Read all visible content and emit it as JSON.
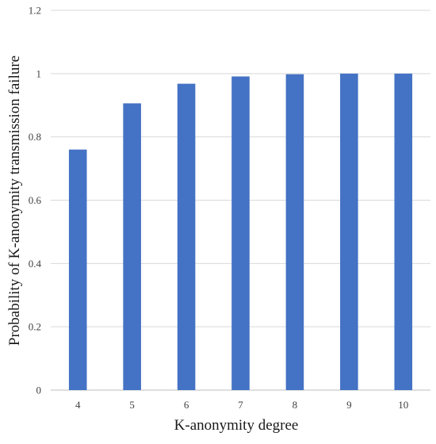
{
  "chart_data": {
    "type": "bar",
    "title": "",
    "xlabel": "K-anonymity degree",
    "ylabel": "Probability of K-anonymity transmission failure",
    "categories": [
      "4",
      "5",
      "6",
      "7",
      "8",
      "9",
      "10"
    ],
    "series": [
      {
        "values": [
          0.76,
          0.906,
          0.968,
          0.991,
          0.998,
          1.0,
          1.0
        ]
      }
    ],
    "ylim": [
      0,
      1.2
    ],
    "yticks": [
      0,
      0.2,
      0.4,
      0.6,
      0.8,
      1,
      1.2
    ],
    "ytick_labels": [
      "0",
      "0.2",
      "0.4",
      "0.6",
      "0.8",
      "1",
      "1.2"
    ],
    "grid": "horizontal",
    "legend": "none",
    "colors": {
      "bar": "#4472C4",
      "grid": "#d9d9d9",
      "axis": "#bfbfbf"
    }
  }
}
